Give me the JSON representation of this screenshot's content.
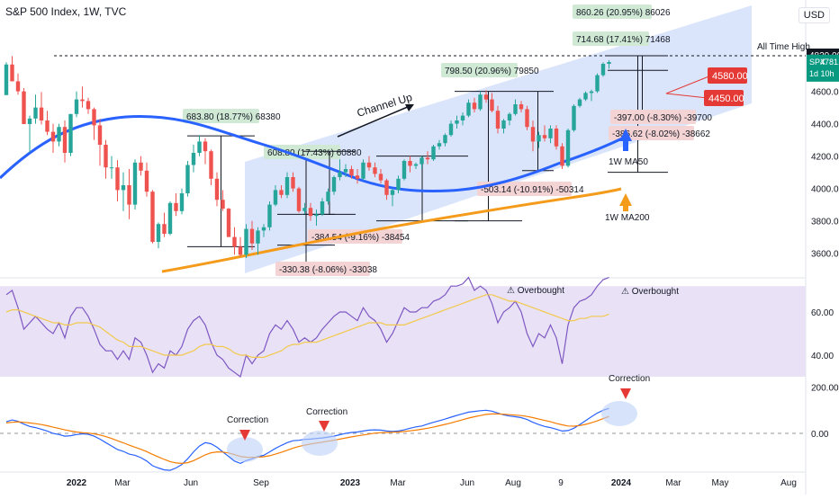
{
  "header": {
    "title": "S&P 500 Index, 1W, TVC",
    "currency": "USD"
  },
  "price_box": {
    "symbol": "SPX",
    "value": "4781.59",
    "countdown": "1d 10h",
    "ath_value": "4820.00",
    "ath_label": "All Time High"
  },
  "colors": {
    "up": "#26a69a",
    "down": "#ef5350",
    "ma50": "#2962ff",
    "ma200": "#f59b1b",
    "channel": "#bcd0f7",
    "rsi": "#7e57c2",
    "rsi_ma": "#f2c94c",
    "macd": "#2962ff",
    "signal": "#f57c00",
    "target": "#e53935"
  },
  "annotations": {
    "channel": "Channel Up",
    "ma50": "1W MA50",
    "ma200": "1W MA200",
    "overbought": "Overbought",
    "correction": "Correction",
    "targets": [
      "4580.00",
      "4450.00"
    ],
    "measures": [
      "683.80 (18.77%) 68380",
      "608.80 (17.43%) 60880",
      "798.50 (20.96%) 79850",
      "714.68 (17.41%) 71468",
      "860.26 (20.95%) 86026",
      "-330.38 (-8.06%) -33038",
      "-384.54 (-9.16%) -38454",
      "-503.14 (-10.91%) -50314",
      "-386.62 (-8.02%) -38662",
      "-397.00 (-8.30%) -39700"
    ]
  },
  "chart_data": [
    {
      "type": "candlestick",
      "title": "S&P 500 Index, 1W, TVC",
      "y_ticks": [
        3600,
        3800,
        4000,
        4200,
        4400,
        4600
      ],
      "x_ticks": [
        "2022",
        "Mar",
        "Jun",
        "Sep",
        "2023",
        "Mar",
        "Jun",
        "Aug",
        "9",
        "2024",
        "Mar",
        "May",
        "Aug"
      ],
      "ylim": [
        3500,
        4850
      ],
      "ohlc": [
        [
          4577,
          4780,
          4577,
          4766
        ],
        [
          4766,
          4818,
          4662,
          4662
        ],
        [
          4662,
          4710,
          4580,
          4600
        ],
        [
          4600,
          4620,
          4400,
          4398
        ],
        [
          4398,
          4450,
          4222,
          4432
        ],
        [
          4432,
          4580,
          4400,
          4500
        ],
        [
          4500,
          4596,
          4395,
          4420
        ],
        [
          4420,
          4480,
          4330,
          4350
        ],
        [
          4350,
          4400,
          4220,
          4290
        ],
        [
          4290,
          4400,
          4260,
          4380
        ],
        [
          4380,
          4420,
          4160,
          4220
        ],
        [
          4220,
          4460,
          4200,
          4460
        ],
        [
          4460,
          4600,
          4440,
          4550
        ],
        [
          4550,
          4630,
          4500,
          4540
        ],
        [
          4540,
          4560,
          4460,
          4490
        ],
        [
          4490,
          4500,
          4300,
          4390
        ],
        [
          4390,
          4430,
          4140,
          4270
        ],
        [
          4270,
          4300,
          4060,
          4130
        ],
        [
          4130,
          4200,
          4060,
          4130
        ],
        [
          4130,
          4175,
          3920,
          3990
        ],
        [
          3990,
          4100,
          3860,
          4020
        ],
        [
          4020,
          4120,
          3810,
          3900
        ],
        [
          3900,
          4180,
          3870,
          4160
        ],
        [
          4160,
          4200,
          4080,
          4110
        ],
        [
          4110,
          4160,
          3950,
          3980
        ],
        [
          3980,
          3990,
          3660,
          3670
        ],
        [
          3670,
          3790,
          3630,
          3780
        ],
        [
          3780,
          3850,
          3700,
          3720
        ],
        [
          3720,
          3920,
          3710,
          3910
        ],
        [
          3910,
          3970,
          3830,
          3860
        ],
        [
          3860,
          4000,
          3840,
          3970
        ],
        [
          3970,
          4170,
          3950,
          4145
        ],
        [
          4145,
          4270,
          4100,
          4220
        ],
        [
          4220,
          4330,
          4200,
          4290
        ],
        [
          4290,
          4310,
          4150,
          4230
        ],
        [
          4230,
          4240,
          4020,
          4060
        ],
        [
          4060,
          4100,
          3890,
          3930
        ],
        [
          3930,
          3990,
          3860,
          3875
        ],
        [
          3875,
          3880,
          3700,
          3700
        ],
        [
          3700,
          3760,
          3590,
          3640
        ],
        [
          3640,
          3700,
          3580,
          3590
        ],
        [
          3590,
          3780,
          3570,
          3750
        ],
        [
          3750,
          3800,
          3620,
          3660
        ],
        [
          3660,
          3760,
          3590,
          3740
        ],
        [
          3740,
          3780,
          3700,
          3760
        ],
        [
          3760,
          3920,
          3740,
          3900
        ],
        [
          3900,
          4020,
          3890,
          3990
        ],
        [
          3990,
          4020,
          3940,
          3960
        ],
        [
          3960,
          4100,
          3940,
          4070
        ],
        [
          4070,
          4100,
          3980,
          4000
        ],
        [
          4000,
          4010,
          3850,
          3860
        ],
        [
          3860,
          3910,
          3840,
          3880
        ],
        [
          3880,
          3910,
          3800,
          3830
        ],
        [
          3830,
          3870,
          3770,
          3840
        ],
        [
          3840,
          3940,
          3830,
          3920
        ],
        [
          3920,
          4000,
          3900,
          3980
        ],
        [
          3980,
          4080,
          3960,
          4070
        ],
        [
          4070,
          4180,
          4050,
          4100
        ],
        [
          4100,
          4150,
          4070,
          4120
        ],
        [
          4120,
          4140,
          4060,
          4080
        ],
        [
          4080,
          4120,
          4030,
          4060
        ],
        [
          4060,
          4180,
          4050,
          4160
        ],
        [
          4160,
          4200,
          4110,
          4130
        ],
        [
          4130,
          4160,
          4070,
          4090
        ],
        [
          4090,
          4120,
          4030,
          4050
        ],
        [
          4050,
          4060,
          3930,
          3960
        ],
        [
          3960,
          4000,
          3890,
          3990
        ],
        [
          3990,
          4080,
          3970,
          4060
        ],
        [
          4060,
          4180,
          4050,
          4170
        ],
        [
          4170,
          4200,
          4100,
          4140
        ],
        [
          4140,
          4160,
          4120,
          4150
        ],
        [
          4150,
          4200,
          4120,
          4190
        ],
        [
          4190,
          4230,
          4150,
          4180
        ],
        [
          4180,
          4270,
          4170,
          4260
        ],
        [
          4260,
          4300,
          4240,
          4280
        ],
        [
          4280,
          4340,
          4260,
          4330
        ],
        [
          4330,
          4420,
          4320,
          4400
        ],
        [
          4400,
          4450,
          4370,
          4420
        ],
        [
          4420,
          4470,
          4390,
          4450
        ],
        [
          4450,
          4550,
          4440,
          4530
        ],
        [
          4530,
          4560,
          4470,
          4490
        ],
        [
          4490,
          4600,
          4480,
          4580
        ],
        [
          4580,
          4607,
          4530,
          4550
        ],
        [
          4550,
          4590,
          4470,
          4480
        ],
        [
          4480,
          4510,
          4340,
          4370
        ],
        [
          4370,
          4430,
          4340,
          4420
        ],
        [
          4420,
          4470,
          4390,
          4460
        ],
        [
          4460,
          4550,
          4450,
          4520
        ],
        [
          4520,
          4540,
          4470,
          4490
        ],
        [
          4490,
          4510,
          4360,
          4380
        ],
        [
          4380,
          4420,
          4230,
          4290
        ],
        [
          4290,
          4350,
          4250,
          4330
        ],
        [
          4330,
          4390,
          4290,
          4310
        ],
        [
          4310,
          4390,
          4280,
          4370
        ],
        [
          4370,
          4390,
          4240,
          4260
        ],
        [
          4260,
          4280,
          4120,
          4140
        ],
        [
          4140,
          4370,
          4130,
          4360
        ],
        [
          4360,
          4520,
          4350,
          4510
        ],
        [
          4510,
          4560,
          4500,
          4550
        ],
        [
          4550,
          4600,
          4540,
          4590
        ],
        [
          4590,
          4610,
          4540,
          4600
        ],
        [
          4600,
          4710,
          4590,
          4700
        ],
        [
          4700,
          4780,
          4690,
          4770
        ],
        [
          4770,
          4793,
          4740,
          4781
        ]
      ]
    },
    {
      "type": "line",
      "title": "RSI",
      "y_ticks": [
        40.0,
        60.0
      ],
      "ylim": [
        30,
        80
      ],
      "series": [
        {
          "values": [
            68,
            70,
            62,
            52,
            55,
            58,
            55,
            52,
            50,
            55,
            48,
            58,
            62,
            62,
            58,
            52,
            45,
            42,
            42,
            38,
            42,
            38,
            48,
            46,
            40,
            32,
            36,
            34,
            42,
            40,
            44,
            52,
            56,
            58,
            54,
            46,
            40,
            38,
            34,
            32,
            30,
            40,
            36,
            40,
            42,
            50,
            54,
            52,
            56,
            52,
            46,
            48,
            46,
            48,
            52,
            55,
            58,
            60,
            60,
            58,
            56,
            62,
            58,
            56,
            52,
            46,
            50,
            56,
            62,
            60,
            60,
            62,
            62,
            65,
            66,
            68,
            72,
            72,
            73,
            76,
            70,
            72,
            70,
            64,
            55,
            60,
            62,
            65,
            60,
            50,
            44,
            50,
            48,
            54,
            48,
            36,
            54,
            62,
            65,
            66,
            68,
            72,
            75,
            76
          ]
        },
        {
          "values": [
            60,
            61,
            61,
            60,
            59,
            58,
            57,
            56,
            55,
            55,
            54,
            54,
            55,
            55,
            55,
            54,
            53,
            51,
            49,
            47,
            46,
            44,
            44,
            44,
            43,
            42,
            41,
            40,
            40,
            40,
            40,
            41,
            42,
            44,
            45,
            45,
            44,
            44,
            43,
            41,
            40,
            40,
            39,
            39,
            39,
            40,
            41,
            42,
            44,
            45,
            45,
            46,
            46,
            46,
            47,
            48,
            49,
            50,
            51,
            52,
            53,
            54,
            55,
            55,
            55,
            54,
            54,
            54,
            54,
            55,
            56,
            57,
            58,
            59,
            60,
            61,
            62,
            63,
            64,
            65,
            66,
            67,
            68,
            68,
            67,
            66,
            65,
            65,
            64,
            63,
            62,
            61,
            60,
            59,
            58,
            57,
            56,
            56,
            57,
            57,
            58,
            58,
            58,
            59
          ]
        }
      ]
    },
    {
      "type": "line",
      "title": "MACD",
      "y_ticks": [
        0.0,
        200.0
      ],
      "series": [
        {
          "values": [
            50,
            58,
            52,
            40,
            30,
            25,
            18,
            10,
            0,
            -5,
            -12,
            -10,
            -5,
            -2,
            -4,
            -12,
            -25,
            -40,
            -55,
            -70,
            -78,
            -90,
            -95,
            -105,
            -120,
            -140,
            -150,
            -158,
            -160,
            -150,
            -135,
            -110,
            -80,
            -55,
            -40,
            -45,
            -60,
            -80,
            -100,
            -120,
            -130,
            -118,
            -110,
            -100,
            -95,
            -80,
            -65,
            -52,
            -40,
            -32,
            -30,
            -26,
            -25,
            -22,
            -20,
            -16,
            -12,
            -6,
            0,
            4,
            6,
            10,
            14,
            15,
            14,
            10,
            8,
            10,
            15,
            22,
            28,
            32,
            40,
            48,
            55,
            62,
            70,
            78,
            85,
            92,
            95,
            98,
            100,
            96,
            88,
            80,
            75,
            72,
            68,
            60,
            48,
            38,
            30,
            25,
            18,
            10,
            12,
            22,
            38,
            55,
            72,
            88,
            100,
            108
          ]
        },
        {
          "values": [
            45,
            48,
            50,
            48,
            45,
            42,
            38,
            33,
            27,
            21,
            15,
            10,
            6,
            3,
            1,
            -2,
            -7,
            -14,
            -22,
            -32,
            -41,
            -51,
            -60,
            -69,
            -79,
            -91,
            -102,
            -113,
            -122,
            -128,
            -130,
            -127,
            -118,
            -106,
            -93,
            -84,
            -80,
            -81,
            -85,
            -92,
            -100,
            -103,
            -104,
            -103,
            -101,
            -97,
            -90,
            -82,
            -73,
            -64,
            -57,
            -51,
            -46,
            -42,
            -38,
            -34,
            -30,
            -25,
            -20,
            -15,
            -11,
            -7,
            -3,
            1,
            3,
            4,
            5,
            6,
            8,
            11,
            14,
            18,
            22,
            27,
            33,
            39,
            45,
            52,
            59,
            66,
            72,
            77,
            82,
            84,
            84,
            83,
            81,
            79,
            77,
            73,
            68,
            62,
            56,
            50,
            43,
            37,
            32,
            31,
            34,
            39,
            46,
            54,
            64,
            73
          ]
        }
      ]
    }
  ]
}
